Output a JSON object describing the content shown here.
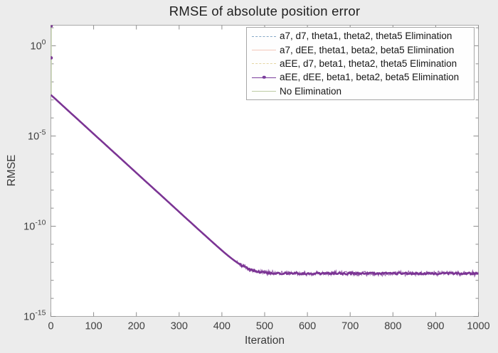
{
  "figure": {
    "background_color": "#ececec",
    "plot_background_color": "#ffffff"
  },
  "axis_style": {
    "box_color": "#a9a9a9",
    "tick_color": "#8d8d8d",
    "tick_label_color": "#3f3f3f"
  },
  "chart_data": {
    "type": "line",
    "title": "RMSE of absolute position error",
    "xlabel": "Iteration",
    "ylabel": "RMSE",
    "xlim": [
      0,
      1000
    ],
    "ylim_log10": [
      -15,
      1.14
    ],
    "x_ticks": [
      0,
      100,
      200,
      300,
      400,
      500,
      600,
      700,
      800,
      900,
      1000
    ],
    "y_ticks": [
      {
        "base": "10",
        "exp": "0"
      },
      {
        "base": "10",
        "exp": "-5"
      },
      {
        "base": "10",
        "exp": "-10"
      },
      {
        "base": "10",
        "exp": "-15"
      }
    ],
    "y_major_exps": [
      0,
      -5,
      -10,
      -15
    ],
    "y_minor_exps": [
      1,
      -1,
      -2,
      -3,
      -4,
      -6,
      -7,
      -8,
      -9,
      -11,
      -12,
      -13,
      -14
    ],
    "grid": false,
    "legend_position": "top-right",
    "series": [
      {
        "name": "a7, d7, theta1, theta2, theta5 Elimination",
        "color": "#85a8c6",
        "line_style": "dashed",
        "marker": null
      },
      {
        "name": "a7, dEE, theta1, beta2, beta5 Elimination",
        "color": "#f3c7b9",
        "line_style": "solid",
        "marker": null
      },
      {
        "name": "aEE, d7, beta1, theta2, theta5 Elimination",
        "color": "#e5d5a3",
        "line_style": "dashed",
        "marker": null
      },
      {
        "name": "aEE, dEE, beta1, beta2, beta5 Elimination",
        "color": "#7a3d9c",
        "line_style": "solid",
        "marker": "dot"
      },
      {
        "name": "No Elimination",
        "color": "#bdcba4",
        "line_style": "solid",
        "marker": null
      }
    ],
    "series_overlap": true,
    "shared_curve": {
      "color": "#7b3494",
      "initial_spike_color": "#c9d6b4",
      "initial_points_log10": [
        [
          0,
          1.1
        ],
        [
          0,
          -0.67
        ]
      ],
      "descent_start_log10": -2.72,
      "descent_end_iteration": 458,
      "floor_log10": -12.62,
      "end_iteration": 1000,
      "noise_amplitude_log10": 0.12
    }
  }
}
